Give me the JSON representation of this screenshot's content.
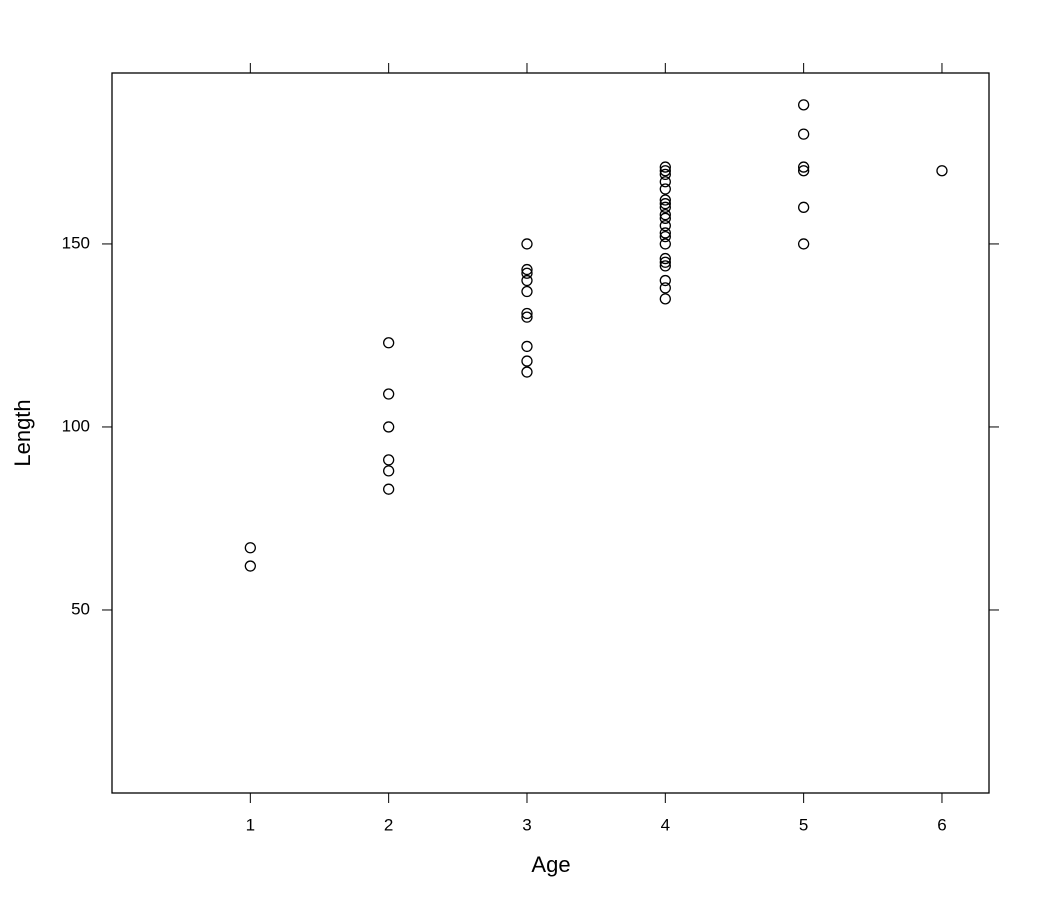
{
  "chart_data": {
    "type": "scatter",
    "x_label": "Age",
    "y_label": "Length",
    "xlim": [
      0,
      6.34
    ],
    "ylim": [
      0,
      196.7
    ],
    "xticks": [
      1,
      2,
      3,
      4,
      5,
      6
    ],
    "yticks": [
      50,
      100,
      150
    ],
    "series": [
      {
        "color": "#000000",
        "x": [
          1,
          1,
          2,
          2,
          2,
          2,
          2,
          2,
          3,
          3,
          3,
          3,
          3,
          3,
          3,
          3,
          3,
          3,
          4,
          4,
          4,
          4,
          4,
          4,
          4,
          4,
          4,
          4,
          4,
          4,
          4,
          4,
          4,
          4,
          4,
          4,
          4,
          4,
          5,
          5,
          5,
          5,
          5,
          5,
          6
        ],
        "values": [
          67,
          62,
          123,
          109,
          100,
          91,
          88,
          83,
          150,
          143,
          142,
          140,
          137,
          131,
          130,
          122,
          118,
          115,
          171,
          170,
          169,
          167,
          165,
          162,
          161,
          160,
          158,
          157,
          155,
          153,
          152,
          150,
          146,
          145,
          144,
          140,
          138,
          135,
          188,
          180,
          171,
          170,
          160,
          150,
          170
        ]
      }
    ]
  }
}
